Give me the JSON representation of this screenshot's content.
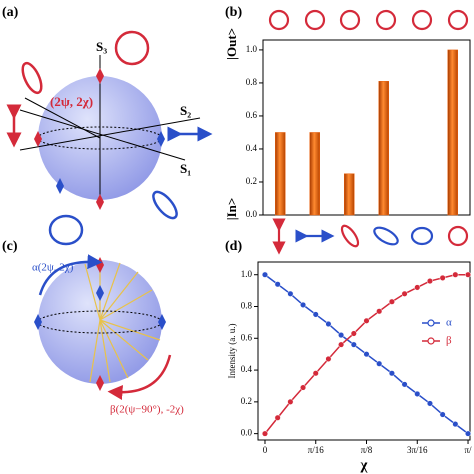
{
  "panels": {
    "a": {
      "label": "(a)",
      "s3": "S₃",
      "s2": "S₂",
      "s1": "S₁",
      "point": "(2ψ, 2χ)"
    },
    "c": {
      "label": "(c)",
      "alpha": "α(2ψ, 2χ)",
      "beta": "β(2(ψ−90°), -2χ)"
    }
  },
  "chart_data": [
    {
      "type": "bar",
      "label": "(b)",
      "out_label": "|Out>",
      "in_label": "|In>",
      "categories": [
        null,
        null,
        null,
        null,
        null,
        null
      ],
      "values": [
        0.5,
        0.5,
        0.25,
        0.81,
        0,
        1.0
      ],
      "color": "#e8620f",
      "ylim": [
        0,
        1.06
      ],
      "yticks": [
        {
          "value": 0,
          "label": "0.0"
        },
        {
          "value": 0.2,
          "label": "0.2"
        },
        {
          "value": 0.4,
          "label": "0.4"
        },
        {
          "value": 0.6,
          "label": "0.6"
        },
        {
          "value": 0.8,
          "label": "0.8"
        },
        {
          "value": 1,
          "label": "1.0"
        }
      ]
    },
    {
      "type": "line",
      "label": "(d)",
      "xlabel": "χ",
      "ylabel": "Intensity (a. u.)",
      "x": [
        0,
        0.0491,
        0.0982,
        0.1473,
        0.1963,
        0.2454,
        0.2945,
        0.3436,
        0.3927,
        0.4418,
        0.4909,
        0.54,
        0.589,
        0.6381,
        0.6872,
        0.7363,
        0.7854
      ],
      "series": [
        {
          "name": "α",
          "color": "#2a4fc9",
          "values": [
            1,
            0.94,
            0.88,
            0.81,
            0.75,
            0.69,
            0.62,
            0.56,
            0.5,
            0.44,
            0.38,
            0.31,
            0.25,
            0.19,
            0.12,
            0.06,
            0
          ]
        },
        {
          "name": "β",
          "color": "#d42a3a",
          "values": [
            0,
            0.1,
            0.2,
            0.29,
            0.38,
            0.47,
            0.56,
            0.63,
            0.71,
            0.77,
            0.83,
            0.88,
            0.92,
            0.96,
            0.98,
            1.0,
            1.0
          ]
        }
      ],
      "xlim": [
        -0.027,
        0.793
      ],
      "ylim": [
        -0.04,
        1.08
      ],
      "xticks": [
        0,
        {
          "value": 0.19635,
          "label": "π/16"
        },
        {
          "value": 0.3927,
          "label": "π/8"
        },
        {
          "value": 0.58905,
          "label": "3π/16"
        },
        {
          "value": 0.7854,
          "label": "π/"
        }
      ],
      "yticks": [
        {
          "value": 0,
          "label": "0.0"
        },
        {
          "value": 0.2,
          "label": "0.2"
        },
        {
          "value": 0.4,
          "label": "0.4"
        },
        {
          "value": 0.6,
          "label": "0.6"
        },
        {
          "value": 0.8,
          "label": "0.8"
        },
        {
          "value": 1,
          "label": "1.0"
        }
      ],
      "legend": "right"
    }
  ]
}
